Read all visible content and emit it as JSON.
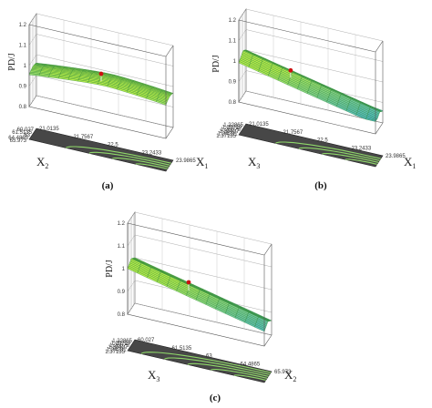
{
  "chart_data": [
    {
      "type": "surface",
      "panel_label": "(a)",
      "zlabel": "PD/J",
      "xlabel_main": "X",
      "xlabel_sub": "1",
      "ylabel_main": "X",
      "ylabel_sub": "2",
      "z_ticks": [
        "0.8",
        "0.9",
        "1",
        "1.1",
        "1.2"
      ],
      "x_ticks": [
        "21.0135",
        "21.7567",
        "22.5",
        "23.2433",
        "23.9865"
      ],
      "y_ticks": [
        "60.027",
        "61.5135",
        "63",
        "64.4865",
        "65.973"
      ],
      "zlim": [
        0.8,
        1.2
      ],
      "surface_z_range": [
        0.92,
        1.0
      ],
      "center_point": {
        "x": 22.5,
        "y": 63,
        "z": 0.99
      },
      "contour_lines": 4,
      "grid": true,
      "colors": {
        "surface": "#b7ec4a",
        "surface_low": "#4fb7c7",
        "floor": "#474747",
        "contour": "#8fd86a",
        "point": "#cc1111"
      }
    },
    {
      "type": "surface",
      "panel_label": "(b)",
      "zlabel": "PD/J",
      "xlabel_main": "X",
      "xlabel_sub": "1",
      "ylabel_main": "X",
      "ylabel_sub": "3",
      "z_ticks": [
        "0.8",
        "0.9",
        "1",
        "1.1",
        "1.2"
      ],
      "x_ticks": [
        "21.0135",
        "21.7567",
        "22.5",
        "23.2433",
        "23.9865"
      ],
      "y_ticks": [
        "1.22865",
        "1.25719",
        "1.28573",
        "1.31427",
        "1.34281",
        "1.37135"
      ],
      "zlim": [
        0.8,
        1.2
      ],
      "surface_z_range": [
        0.86,
        1.02
      ],
      "center_point": {
        "x": 22.5,
        "y": 1.3,
        "z": 0.98
      },
      "contour_lines": 4,
      "grid": true,
      "colors": {
        "surface": "#b7ec4a",
        "surface_low": "#4fb7c7",
        "floor": "#474747",
        "contour": "#8fd86a",
        "point": "#cc1111"
      }
    },
    {
      "type": "surface",
      "panel_label": "(c)",
      "zlabel": "PD/J",
      "xlabel_main": "X",
      "xlabel_sub": "2",
      "ylabel_main": "X",
      "ylabel_sub": "3",
      "z_ticks": [
        "0.8",
        "0.9",
        "1",
        "1.1",
        "1.2"
      ],
      "x_ticks": [
        "60.027",
        "61.5135",
        "63",
        "64.4865",
        "65.973"
      ],
      "y_ticks": [
        "1.22865",
        "1.25719",
        "1.28573",
        "1.31427",
        "1.34281",
        "1.37135"
      ],
      "zlim": [
        0.8,
        1.2
      ],
      "surface_z_range": [
        0.86,
        1.02
      ],
      "center_point": {
        "x": 63,
        "y": 1.3,
        "z": 0.98
      },
      "contour_lines": 5,
      "grid": true,
      "colors": {
        "surface": "#b7ec4a",
        "surface_low": "#4fb7c7",
        "floor": "#474747",
        "contour": "#8fd86a",
        "point": "#cc1111"
      }
    }
  ]
}
